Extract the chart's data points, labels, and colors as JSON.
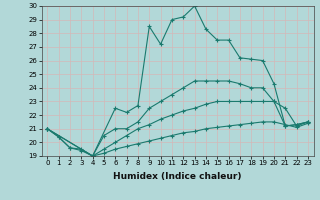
{
  "xlabel": "Humidex (Indice chaleur)",
  "bg_color": "#b2d8d8",
  "grid_color": "#c8e0e0",
  "line_color": "#1a7a6e",
  "xlim": [
    -0.5,
    23.5
  ],
  "ylim": [
    19,
    30
  ],
  "xticks": [
    0,
    1,
    2,
    3,
    4,
    5,
    6,
    7,
    8,
    9,
    10,
    11,
    12,
    13,
    14,
    15,
    16,
    17,
    18,
    19,
    20,
    21,
    22,
    23
  ],
  "yticks": [
    19,
    20,
    21,
    22,
    23,
    24,
    25,
    26,
    27,
    28,
    29,
    30
  ],
  "series": [
    {
      "x": [
        0,
        1,
        2,
        3,
        4,
        6,
        7,
        8,
        9,
        10,
        11,
        12,
        13,
        14,
        15,
        16,
        17,
        18,
        19,
        20,
        21,
        22,
        23
      ],
      "y": [
        21,
        20.4,
        19.6,
        19.5,
        19.0,
        22.5,
        22.2,
        22.7,
        28.5,
        27.2,
        29.0,
        29.2,
        30.0,
        28.3,
        27.5,
        27.5,
        26.2,
        26.1,
        26.0,
        24.3,
        21.2,
        21.3,
        21.5
      ]
    },
    {
      "x": [
        0,
        1,
        2,
        3,
        4,
        5,
        6,
        7,
        8,
        9,
        10,
        11,
        12,
        13,
        14,
        15,
        16,
        17,
        18,
        19,
        20,
        21,
        22,
        23
      ],
      "y": [
        21,
        20.4,
        19.6,
        19.4,
        19.0,
        20.5,
        21.0,
        21.0,
        21.5,
        22.5,
        23.0,
        23.5,
        24.0,
        24.5,
        24.5,
        24.5,
        24.5,
        24.3,
        24.0,
        24.0,
        23.0,
        21.2,
        21.3,
        21.5
      ]
    },
    {
      "x": [
        0,
        4,
        5,
        6,
        7,
        8,
        9,
        10,
        11,
        12,
        13,
        14,
        15,
        16,
        17,
        18,
        19,
        20,
        21,
        22,
        23
      ],
      "y": [
        21,
        19.0,
        19.5,
        20.0,
        20.5,
        21.0,
        21.3,
        21.7,
        22.0,
        22.3,
        22.5,
        22.8,
        23.0,
        23.0,
        23.0,
        23.0,
        23.0,
        23.0,
        22.5,
        21.2,
        21.5
      ]
    },
    {
      "x": [
        0,
        4,
        5,
        6,
        7,
        8,
        9,
        10,
        11,
        12,
        13,
        14,
        15,
        16,
        17,
        18,
        19,
        20,
        21,
        22,
        23
      ],
      "y": [
        21,
        19.0,
        19.2,
        19.5,
        19.7,
        19.9,
        20.1,
        20.3,
        20.5,
        20.7,
        20.8,
        21.0,
        21.1,
        21.2,
        21.3,
        21.4,
        21.5,
        21.5,
        21.3,
        21.1,
        21.4
      ]
    }
  ]
}
